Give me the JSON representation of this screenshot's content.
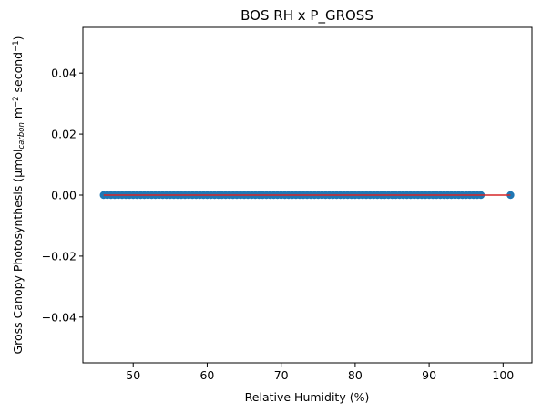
{
  "chart_data": {
    "type": "scatter",
    "title": "BOS RH x P_GROSS",
    "xlabel": "Relative Humidity (%)",
    "ylabel_parts": [
      "Gross Canopy Photosynthesis (µmol",
      "carbon",
      " m",
      "−2",
      " second",
      "−1",
      ")"
    ],
    "xlim": [
      43.2,
      103.9
    ],
    "ylim": [
      -0.055,
      0.055
    ],
    "xticks": [
      50,
      60,
      70,
      80,
      90,
      100
    ],
    "yticks": [
      -0.04,
      -0.02,
      0.0,
      0.02,
      0.04
    ],
    "ytick_labels": [
      "−0.04",
      "−0.02",
      "0.00",
      "0.02",
      "0.04"
    ],
    "grid": false,
    "series": [
      {
        "kind": "scatter",
        "color": "#1f77b4",
        "x_range": [
          46,
          97.3
        ],
        "x_extra": [
          101
        ],
        "y": 0.0
      },
      {
        "kind": "line",
        "color": "#d62728",
        "x": [
          46,
          101
        ],
        "y": [
          0.0,
          0.0
        ]
      }
    ]
  }
}
